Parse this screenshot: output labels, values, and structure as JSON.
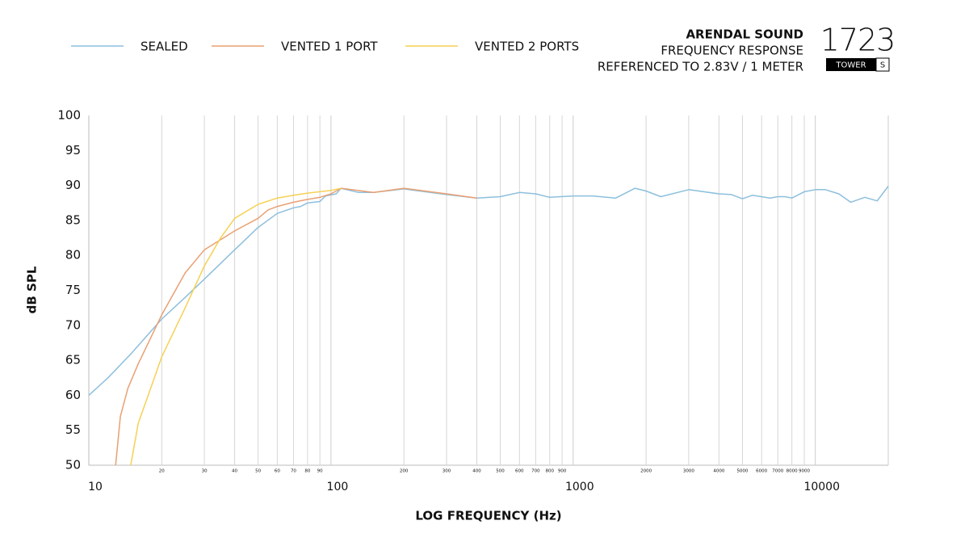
{
  "chart_data": {
    "type": "line",
    "brand": "ARENDAL SOUND",
    "title": "FREQUENCY RESPONSE",
    "subtitle": "REFERENCED TO 2.83V / 1 METER",
    "model": "1723",
    "model_line": "TOWER",
    "model_variant": "S",
    "xlabel": "LOG FREQUENCY (Hz)",
    "ylabel": "dB SPL",
    "xscale": "log",
    "xlim": [
      10,
      20000
    ],
    "ylim": [
      50,
      100
    ],
    "xticks": [
      10,
      100,
      1000,
      10000
    ],
    "xticks_minor": [
      20,
      30,
      40,
      50,
      60,
      70,
      80,
      90,
      200,
      300,
      400,
      500,
      600,
      700,
      800,
      900,
      2000,
      3000,
      4000,
      5000,
      6000,
      7000,
      8000,
      9000
    ],
    "yticks": [
      50,
      55,
      60,
      65,
      70,
      75,
      80,
      85,
      90,
      95,
      100
    ],
    "grid": true,
    "legend": "top-left",
    "series": [
      {
        "name": "SEALED",
        "color": "#8dbfdd",
        "x": [
          10,
          12,
          15,
          20,
          25,
          30,
          40,
          50,
          60,
          70,
          75,
          80,
          90,
          95,
          105,
          110,
          130,
          150,
          200,
          300,
          400,
          500,
          600,
          700,
          800,
          1000,
          1200,
          1500,
          1800,
          2000,
          2300,
          3000,
          4000,
          4500,
          5000,
          5500,
          6500,
          7000,
          7500,
          8000,
          9000,
          10000,
          11000,
          12500,
          14000,
          16000,
          18000,
          20000
        ],
        "values": [
          60,
          62.5,
          66,
          70.9,
          74,
          76.6,
          80.8,
          84,
          86,
          86.8,
          87,
          87.5,
          87.7,
          88.5,
          88.8,
          89.6,
          89,
          89,
          89.5,
          88.7,
          88.2,
          88.4,
          89,
          88.8,
          88.3,
          88.5,
          88.5,
          88.2,
          89.6,
          89.2,
          88.4,
          89.4,
          88.8,
          88.7,
          88.1,
          88.6,
          88.2,
          88.4,
          88.4,
          88.2,
          89.1,
          89.4,
          89.4,
          88.8,
          87.6,
          88.3,
          87.8,
          89.9
        ]
      },
      {
        "name": "VENTED 1 PORT",
        "color": "#e9a072",
        "x": [
          12.9,
          13.5,
          14.5,
          16,
          20,
          25,
          30,
          40,
          50,
          55,
          60,
          70,
          80,
          90,
          100,
          110,
          150,
          200,
          300,
          400
        ],
        "values": [
          50,
          57,
          61,
          64.5,
          71.5,
          77.5,
          80.8,
          83.5,
          85.3,
          86.5,
          87,
          87.6,
          88,
          88.3,
          88.8,
          89.6,
          89,
          89.6,
          88.8,
          88.2
        ]
      },
      {
        "name": "VENTED 2 PORTS",
        "color": "#f5d154",
        "x": [
          14.9,
          16,
          18,
          20,
          25,
          30,
          35,
          40,
          50,
          60,
          70,
          80,
          100,
          110
        ],
        "values": [
          50,
          56,
          61,
          65.5,
          72.5,
          78.5,
          82.5,
          85.3,
          87.3,
          88.2,
          88.6,
          88.9,
          89.3,
          89.6
        ]
      }
    ]
  }
}
